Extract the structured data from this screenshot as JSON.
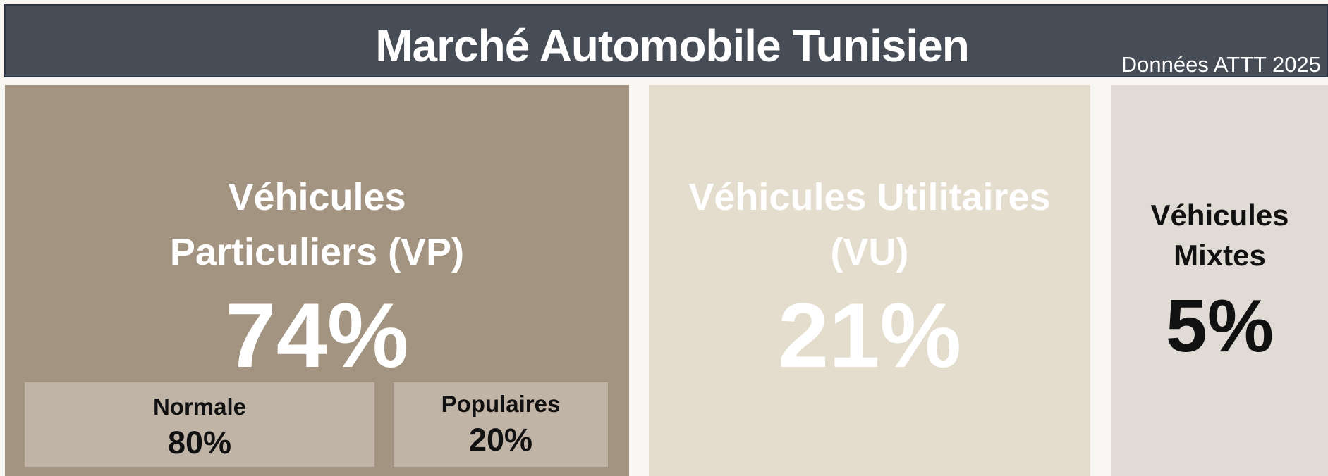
{
  "header": {
    "title": "Marché Automobile Tunisien",
    "subtitle": "Données ATTT 2025"
  },
  "cards": [
    {
      "label": "Véhicules Particuliers (VP)",
      "value": "74%",
      "segments": [
        {
          "label": "Normale",
          "value": "80%"
        },
        {
          "label": "Populaires",
          "value": "20%"
        }
      ]
    },
    {
      "label": "Véhicules Utilitaires (VU)",
      "value": "21%"
    },
    {
      "label": "Véhicules Mixtes",
      "value": "5%"
    }
  ]
}
